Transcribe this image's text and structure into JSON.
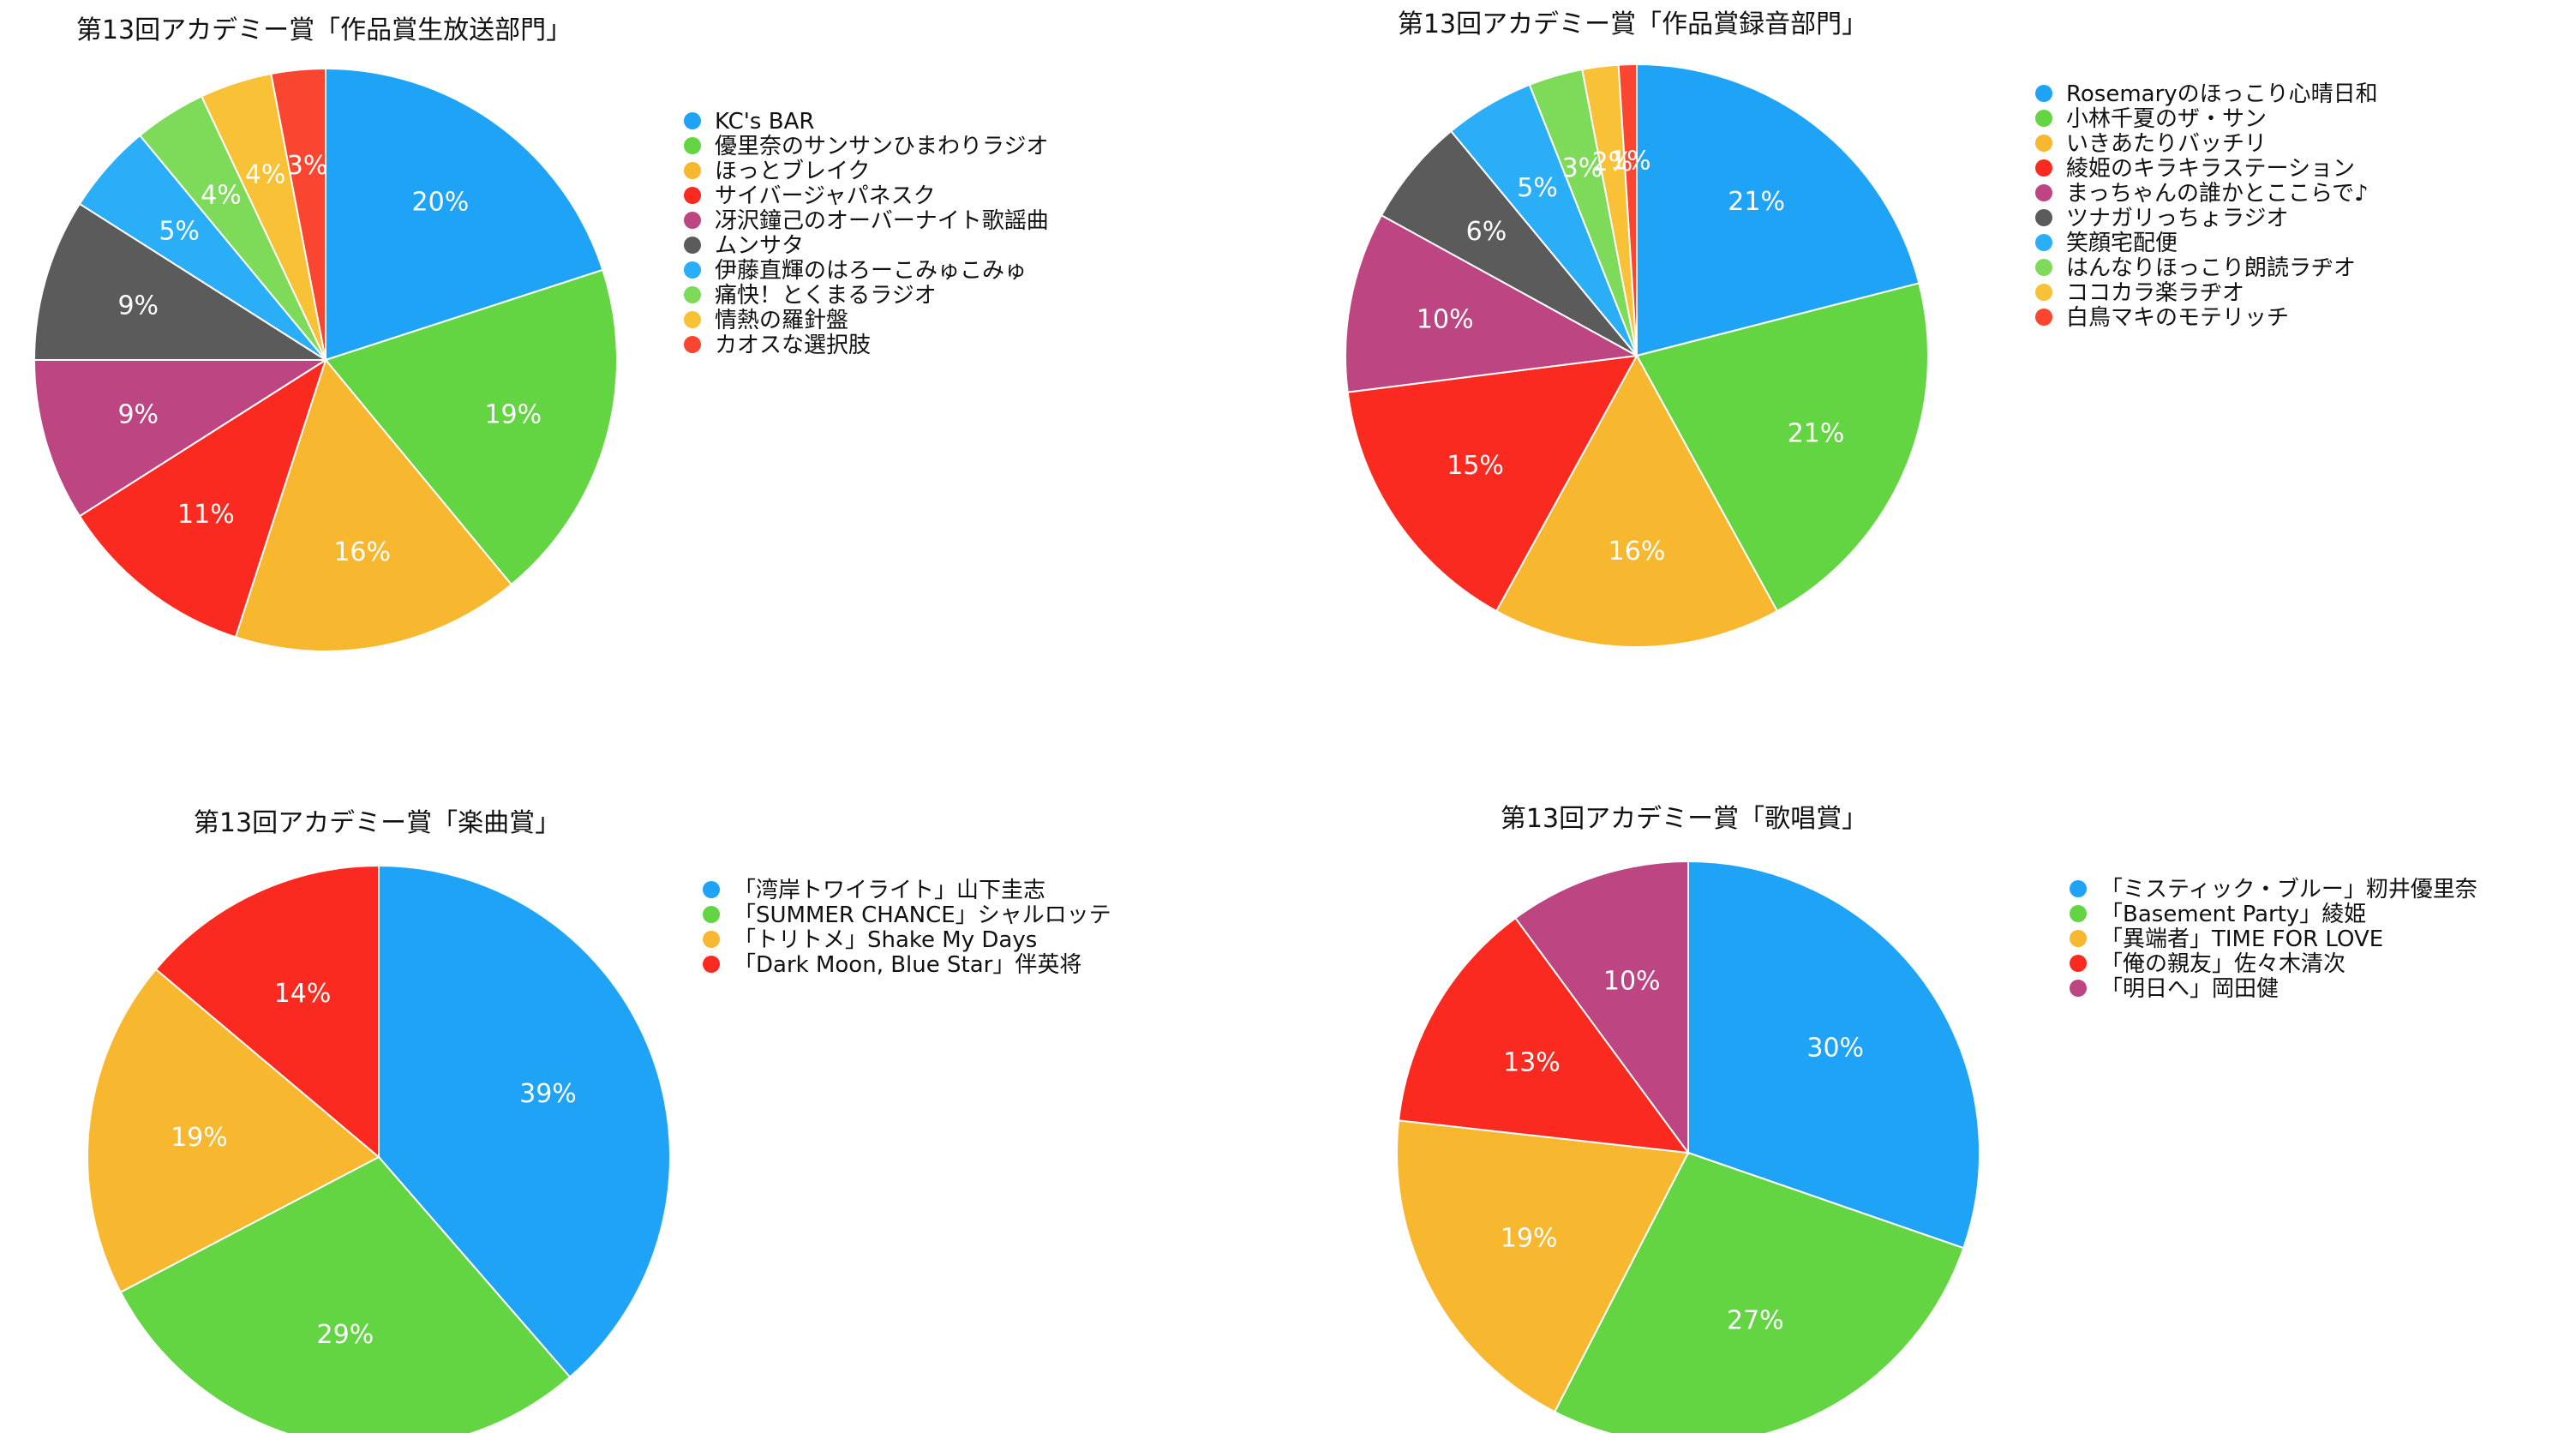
{
  "chart_data": [
    {
      "type": "pie",
      "title": "第13回アカデミー賞「作品賞生放送部門」",
      "series": [
        {
          "name": "KC's BAR",
          "value": 20,
          "label": "20%",
          "color": "#1EA3F7"
        },
        {
          "name": "優里奈のサンサンひまわりラジオ",
          "value": 19,
          "label": "19%",
          "color": "#63D543"
        },
        {
          "name": "ほっとブレイク",
          "value": 16,
          "label": "16%",
          "color": "#F7B72E"
        },
        {
          "name": "サイバージャパネスク",
          "value": 11,
          "label": "11%",
          "color": "#FB2A20"
        },
        {
          "name": "冴沢鐘己のオーバーナイト歌謡曲",
          "value": 9,
          "label": "9%",
          "color": "#BC4582"
        },
        {
          "name": "ムンサタ",
          "value": 9,
          "label": "9%",
          "color": "#5B5B5B"
        },
        {
          "name": "伊藤直輝のはろーこみゅこみゅ",
          "value": 5,
          "label": "5%",
          "color": "#2AAEF8"
        },
        {
          "name": "痛快！とくまるラジオ",
          "value": 4,
          "label": "4%",
          "color": "#7EDB5A"
        },
        {
          "name": "情熱の羅針盤",
          "value": 4,
          "label": "4%",
          "color": "#F8C136"
        },
        {
          "name": "カオスな選択肢",
          "value": 3,
          "label": "3%",
          "color": "#FA4530"
        }
      ]
    },
    {
      "type": "pie",
      "title": "第13回アカデミー賞「作品賞録音部門」",
      "series": [
        {
          "name": "Rosemaryのほっこり心晴日和",
          "value": 21,
          "label": "21%",
          "color": "#1EA3F7"
        },
        {
          "name": "小林千夏のザ・サン",
          "value": 21,
          "label": "21%",
          "color": "#63D543"
        },
        {
          "name": "いきあたりバッチリ",
          "value": 16,
          "label": "16%",
          "color": "#F7B72E"
        },
        {
          "name": "綾姫のキラキラステーション",
          "value": 15,
          "label": "15%",
          "color": "#FB2A20"
        },
        {
          "name": "まっちゃんの誰かとここらで♪",
          "value": 10,
          "label": "10%",
          "color": "#BC4582"
        },
        {
          "name": "ツナガリっちょラジオ",
          "value": 6,
          "label": "6%",
          "color": "#5B5B5B"
        },
        {
          "name": "笑顔宅配便",
          "value": 5,
          "label": "5%",
          "color": "#2AAEF8"
        },
        {
          "name": "はんなりほっこり朗読ラヂオ",
          "value": 3,
          "label": "3%",
          "color": "#7EDB5A"
        },
        {
          "name": "ココカラ楽ラヂオ",
          "value": 2,
          "label": "2%",
          "color": "#F8C136"
        },
        {
          "name": "白鳥マキのモテリッチ",
          "value": 1,
          "label": "1%",
          "color": "#FA4530"
        }
      ]
    },
    {
      "type": "pie",
      "title": "第13回アカデミー賞「楽曲賞」",
      "series": [
        {
          "name": "「湾岸トワイライト」山下圭志",
          "value": 39,
          "label": "39%",
          "color": "#1EA3F7"
        },
        {
          "name": "「SUMMER CHANCE」シャルロッテ",
          "value": 29,
          "label": "29%",
          "color": "#63D543"
        },
        {
          "name": "「トリトメ」Shake My Days",
          "value": 19,
          "label": "19%",
          "color": "#F7B72E"
        },
        {
          "name": "「Dark Moon, Blue Star」伴英将",
          "value": 14,
          "label": "14%",
          "color": "#FB2A20"
        }
      ]
    },
    {
      "type": "pie",
      "title": "第13回アカデミー賞「歌唱賞」",
      "series": [
        {
          "name": "「ミスティック・ブルー」籾井優里奈",
          "value": 30,
          "label": "30%",
          "color": "#1EA3F7"
        },
        {
          "name": "「Basement Party」綾姫",
          "value": 27,
          "label": "27%",
          "color": "#63D543"
        },
        {
          "name": "「異端者」TIME FOR LOVE",
          "value": 19,
          "label": "19%",
          "color": "#F7B72E"
        },
        {
          "name": "「俺の親友」佐々木清次",
          "value": 13,
          "label": "13%",
          "color": "#FB2A20"
        },
        {
          "name": "「明日へ」岡田健",
          "value": 10,
          "label": "10%",
          "color": "#BC4582"
        }
      ]
    }
  ]
}
